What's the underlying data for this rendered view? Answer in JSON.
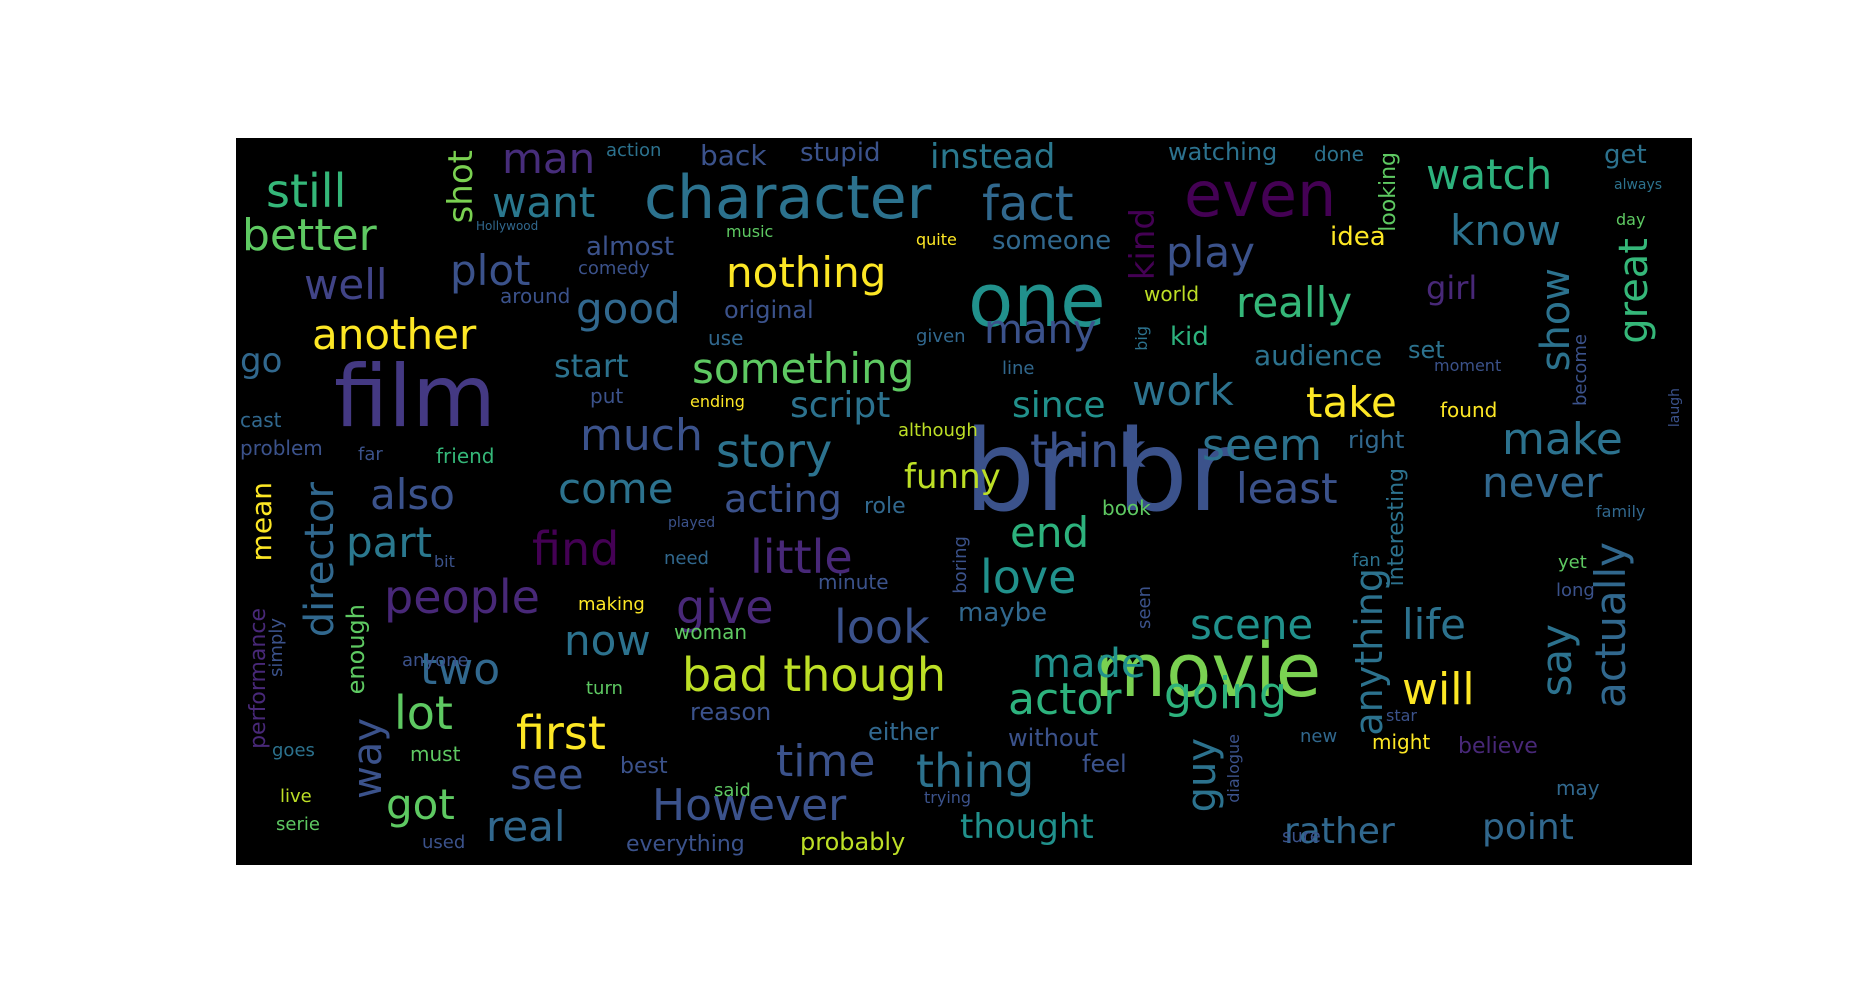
{
  "wordcloud": {
    "words": [
      {
        "text": "br br",
        "color": "#3b528b"
      },
      {
        "text": "film",
        "color": "#443983"
      },
      {
        "text": "movie",
        "color": "#7ad151"
      },
      {
        "text": "one",
        "color": "#21918c"
      },
      {
        "text": "even",
        "color": "#440154"
      },
      {
        "text": "character",
        "color": "#2c728e"
      },
      {
        "text": "fact",
        "color": "#31688e"
      },
      {
        "text": "still",
        "color": "#35b779"
      },
      {
        "text": "better",
        "color": "#5ec962"
      },
      {
        "text": "man",
        "color": "#472d7b"
      },
      {
        "text": "want",
        "color": "#2a788e"
      },
      {
        "text": "plot",
        "color": "#3b528b"
      },
      {
        "text": "well",
        "color": "#414487"
      },
      {
        "text": "nothing",
        "color": "#fde725"
      },
      {
        "text": "good",
        "color": "#31688e"
      },
      {
        "text": "another",
        "color": "#fde725"
      },
      {
        "text": "something",
        "color": "#5ec962"
      },
      {
        "text": "many",
        "color": "#3b528b"
      },
      {
        "text": "watch",
        "color": "#2db27d"
      },
      {
        "text": "know",
        "color": "#2c728e"
      },
      {
        "text": "play",
        "color": "#3b528b"
      },
      {
        "text": "really",
        "color": "#35b779"
      },
      {
        "text": "kind",
        "color": "#440154"
      },
      {
        "text": "great",
        "color": "#35b779"
      },
      {
        "text": "show",
        "color": "#2c728e"
      },
      {
        "text": "work",
        "color": "#2c728e"
      },
      {
        "text": "take",
        "color": "#fde725"
      },
      {
        "text": "much",
        "color": "#3b528b"
      },
      {
        "text": "story",
        "color": "#2c728e"
      },
      {
        "text": "think",
        "color": "#3b528b"
      },
      {
        "text": "seem",
        "color": "#2c728e"
      },
      {
        "text": "make",
        "color": "#2c728e"
      },
      {
        "text": "also",
        "color": "#3b528b"
      },
      {
        "text": "come",
        "color": "#2c728e"
      },
      {
        "text": "acting",
        "color": "#3b528b"
      },
      {
        "text": "least",
        "color": "#3b528b"
      },
      {
        "text": "never",
        "color": "#31688e"
      },
      {
        "text": "director",
        "color": "#31688e"
      },
      {
        "text": "part",
        "color": "#2a788e"
      },
      {
        "text": "find",
        "color": "#440154"
      },
      {
        "text": "little",
        "color": "#482878"
      },
      {
        "text": "end",
        "color": "#2db27d"
      },
      {
        "text": "love",
        "color": "#21918c"
      },
      {
        "text": "people",
        "color": "#482878"
      },
      {
        "text": "give",
        "color": "#482878"
      },
      {
        "text": "look",
        "color": "#3b528b"
      },
      {
        "text": "scene",
        "color": "#21918c"
      },
      {
        "text": "life",
        "color": "#2c728e"
      },
      {
        "text": "actually",
        "color": "#31688e"
      },
      {
        "text": "say",
        "color": "#2c728e"
      },
      {
        "text": "now",
        "color": "#2c728e"
      },
      {
        "text": "two",
        "color": "#31688e"
      },
      {
        "text": "bad though",
        "color": "#bddf26"
      },
      {
        "text": "made",
        "color": "#21918c"
      },
      {
        "text": "actor",
        "color": "#2db27d"
      },
      {
        "text": "going",
        "color": "#2db27d"
      },
      {
        "text": "will",
        "color": "#fde725"
      },
      {
        "text": "lot",
        "color": "#5ec962"
      },
      {
        "text": "first",
        "color": "#fde725"
      },
      {
        "text": "anything",
        "color": "#2c728e"
      },
      {
        "text": "way",
        "color": "#3b528b"
      },
      {
        "text": "see",
        "color": "#3b528b"
      },
      {
        "text": "time",
        "color": "#3b528b"
      },
      {
        "text": "thing",
        "color": "#2c728e"
      },
      {
        "text": "guy",
        "color": "#2c728e"
      },
      {
        "text": "got",
        "color": "#5ec962"
      },
      {
        "text": "real",
        "color": "#31688e"
      },
      {
        "text": "However",
        "color": "#3b528b"
      },
      {
        "text": "thought",
        "color": "#21918c"
      },
      {
        "text": "rather",
        "color": "#31688e"
      },
      {
        "text": "point",
        "color": "#31688e"
      },
      {
        "text": "funny",
        "color": "#bddf26"
      },
      {
        "text": "since",
        "color": "#21918c"
      },
      {
        "text": "script",
        "color": "#2c728e"
      },
      {
        "text": "instead",
        "color": "#2a788e"
      },
      {
        "text": "start",
        "color": "#2c728e"
      },
      {
        "text": "audience",
        "color": "#2c728e"
      },
      {
        "text": "shot",
        "color": "#7ad151"
      },
      {
        "text": "go",
        "color": "#31688e"
      },
      {
        "text": "mean",
        "color": "#fde725"
      },
      {
        "text": "performance",
        "color": "#482878"
      },
      {
        "text": "enough",
        "color": "#5ec962"
      },
      {
        "text": "back",
        "color": "#3b528b"
      },
      {
        "text": "stupid",
        "color": "#3b528b"
      },
      {
        "text": "someone",
        "color": "#31688e"
      },
      {
        "text": "almost",
        "color": "#3b528b"
      },
      {
        "text": "watching",
        "color": "#2c728e"
      },
      {
        "text": "done",
        "color": "#2c728e"
      },
      {
        "text": "get",
        "color": "#2c728e"
      },
      {
        "text": "idea",
        "color": "#fde725"
      },
      {
        "text": "looking",
        "color": "#5ec962"
      },
      {
        "text": "girl",
        "color": "#482878"
      },
      {
        "text": "original",
        "color": "#3b528b"
      },
      {
        "text": "kid",
        "color": "#2db27d"
      },
      {
        "text": "set",
        "color": "#2c728e"
      },
      {
        "text": "become",
        "color": "#3b528b"
      },
      {
        "text": "world",
        "color": "#bddf26"
      },
      {
        "text": "big",
        "color": "#2c728e"
      },
      {
        "text": "action",
        "color": "#2c728e"
      },
      {
        "text": "Hollywood",
        "color": "#31688e"
      },
      {
        "text": "music",
        "color": "#5ec962"
      },
      {
        "text": "comedy",
        "color": "#3b528b"
      },
      {
        "text": "quite",
        "color": "#fde725"
      },
      {
        "text": "around",
        "color": "#3b528b"
      },
      {
        "text": "use",
        "color": "#31688e"
      },
      {
        "text": "given",
        "color": "#31688e"
      },
      {
        "text": "line",
        "color": "#31688e"
      },
      {
        "text": "ending",
        "color": "#fde725"
      },
      {
        "text": "put",
        "color": "#3b528b"
      },
      {
        "text": "although",
        "color": "#bddf26"
      },
      {
        "text": "found",
        "color": "#fde725"
      },
      {
        "text": "moment",
        "color": "#3b528b"
      },
      {
        "text": "right",
        "color": "#31688e"
      },
      {
        "text": "cast",
        "color": "#31688e"
      },
      {
        "text": "problem",
        "color": "#3b528b"
      },
      {
        "text": "far",
        "color": "#3b528b"
      },
      {
        "text": "friend",
        "color": "#35b779"
      },
      {
        "text": "role",
        "color": "#31688e"
      },
      {
        "text": "book",
        "color": "#5ec962"
      },
      {
        "text": "family",
        "color": "#31688e"
      },
      {
        "text": "interesting",
        "color": "#2c728e"
      },
      {
        "text": "played",
        "color": "#3b528b"
      },
      {
        "text": "need",
        "color": "#31688e"
      },
      {
        "text": "boring",
        "color": "#3b528b"
      },
      {
        "text": "minute",
        "color": "#3b528b"
      },
      {
        "text": "bit",
        "color": "#3b528b"
      },
      {
        "text": "making",
        "color": "#fde725"
      },
      {
        "text": "maybe",
        "color": "#31688e"
      },
      {
        "text": "woman",
        "color": "#5ec962"
      },
      {
        "text": "seen",
        "color": "#3b528b"
      },
      {
        "text": "fan",
        "color": "#2c728e"
      },
      {
        "text": "yet",
        "color": "#5ec962"
      },
      {
        "text": "long",
        "color": "#3b528b"
      },
      {
        "text": "anyone",
        "color": "#3b528b"
      },
      {
        "text": "simply",
        "color": "#3b528b"
      },
      {
        "text": "turn",
        "color": "#5ec962"
      },
      {
        "text": "reason",
        "color": "#3b528b"
      },
      {
        "text": "either",
        "color": "#31688e"
      },
      {
        "text": "without",
        "color": "#3b528b"
      },
      {
        "text": "feel",
        "color": "#3b528b"
      },
      {
        "text": "might",
        "color": "#fde725"
      },
      {
        "text": "believe",
        "color": "#482878"
      },
      {
        "text": "new",
        "color": "#31688e"
      },
      {
        "text": "dialogue",
        "color": "#3b528b"
      },
      {
        "text": "must",
        "color": "#5ec962"
      },
      {
        "text": "best",
        "color": "#3b528b"
      },
      {
        "text": "said",
        "color": "#5ec962"
      },
      {
        "text": "goes",
        "color": "#2c728e"
      },
      {
        "text": "live",
        "color": "#bddf26"
      },
      {
        "text": "trying",
        "color": "#3b528b"
      },
      {
        "text": "may",
        "color": "#31688e"
      },
      {
        "text": "serie",
        "color": "#5ec962"
      },
      {
        "text": "used",
        "color": "#3b528b"
      },
      {
        "text": "everything",
        "color": "#3b528b"
      },
      {
        "text": "probably",
        "color": "#bddf26"
      },
      {
        "text": "sure",
        "color": "#3b528b"
      },
      {
        "text": "always",
        "color": "#2c728e"
      },
      {
        "text": "day",
        "color": "#5ec962"
      },
      {
        "text": "laugh",
        "color": "#3b528b"
      },
      {
        "text": "star",
        "color": "#3b528b"
      }
    ]
  }
}
